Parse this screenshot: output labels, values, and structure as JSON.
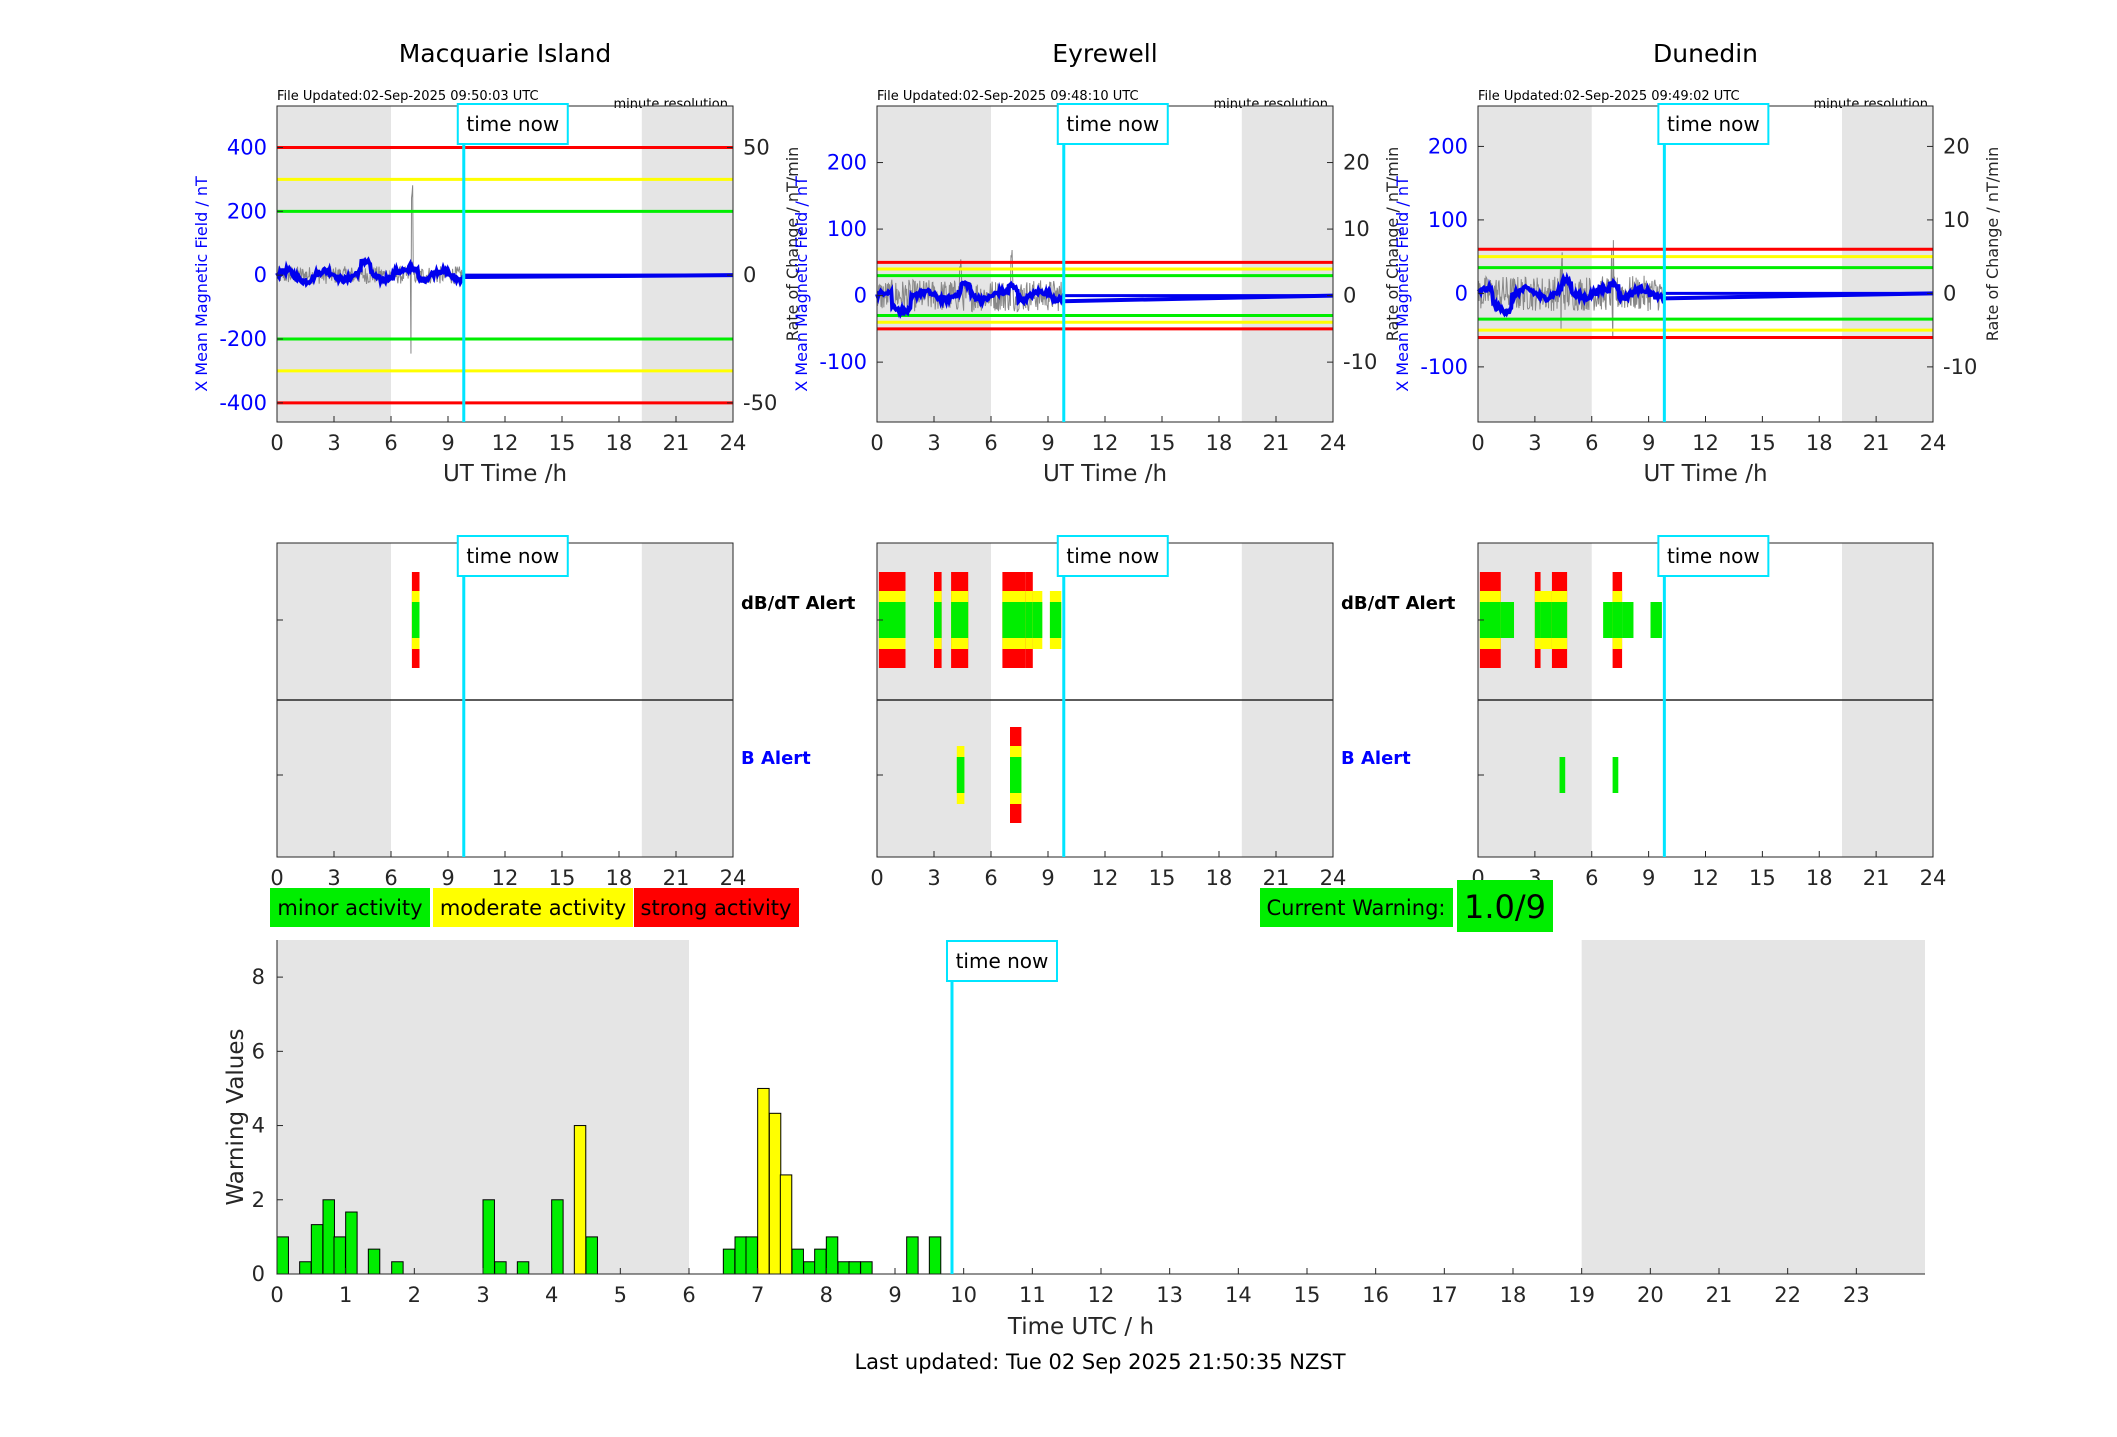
{
  "footer": "Last updated: Tue 02 Sep 2025 21:50:35 NZST",
  "time_now_label": "time now",
  "legend": {
    "minor": "minor activity",
    "moderate": "moderate activity",
    "strong": "strong activity",
    "colors": {
      "minor": "#00ee00",
      "moderate": "#ffff00",
      "strong": "#ff0000",
      "now": "#00e5ff",
      "trace": "#0000ee"
    }
  },
  "current_warning": {
    "label": "Current Warning:",
    "value": "1.0/9"
  },
  "stations": [
    {
      "name": "Macquarie Island",
      "file_updated": "File Updated:02-Sep-2025 09:50:03 UTC",
      "resolution": "minute resolution",
      "y_label": "X Mean Magnetic Field / nT",
      "y2_label": "Rate of Change / nT/min",
      "y_ticks": [
        -400,
        -200,
        0,
        200,
        400
      ],
      "y2_ticks": [
        -50,
        0,
        50
      ],
      "y_range": [
        -460,
        530
      ],
      "y2_range": [
        -57.5,
        66.25
      ],
      "thresholds": {
        "red": 400,
        "yellow": 300,
        "green": 200
      },
      "night_shading_hours": [
        [
          0,
          6
        ],
        [
          19.2,
          24
        ]
      ],
      "x_label": "UT Time /h",
      "x_ticks": [
        0,
        3,
        6,
        9,
        12,
        15,
        18,
        21,
        24
      ],
      "dbdt_alerts": [
        {
          "start": 7.1,
          "end": 7.5,
          "level": 3
        }
      ],
      "b_alerts": []
    },
    {
      "name": "Eyrewell",
      "file_updated": "File Updated:02-Sep-2025 09:48:10 UTC",
      "resolution": "minute resolution",
      "y_label": "X Mean Magnetic Field / nT",
      "y2_label": "Rate of Change / nT/min",
      "y_ticks": [
        -100,
        0,
        100,
        200
      ],
      "y2_ticks": [
        -10,
        0,
        10,
        20
      ],
      "y_range": [
        -190,
        285
      ],
      "y2_range": [
        -19,
        28.5
      ],
      "thresholds": {
        "red": 50,
        "yellow": 40,
        "green": 30
      },
      "night_shading_hours": [
        [
          0,
          6
        ],
        [
          19.2,
          24
        ]
      ],
      "x_label": "UT Time /h",
      "x_ticks": [
        0,
        3,
        6,
        9,
        12,
        15,
        18,
        21,
        24
      ],
      "dbdt_alerts": [
        {
          "start": 0.1,
          "end": 1.5,
          "level": 3
        },
        {
          "start": 3.0,
          "end": 3.4,
          "level": 3
        },
        {
          "start": 3.9,
          "end": 4.8,
          "level": 3
        },
        {
          "start": 6.6,
          "end": 7.8,
          "level": 3
        },
        {
          "start": 7.8,
          "end": 8.2,
          "level": 3
        },
        {
          "start": 8.2,
          "end": 8.7,
          "level": 2
        },
        {
          "start": 9.1,
          "end": 9.7,
          "level": 2
        }
      ],
      "b_alerts": [
        {
          "start": 4.2,
          "end": 4.6,
          "level": 2
        },
        {
          "start": 7.0,
          "end": 7.6,
          "level": 3
        }
      ]
    },
    {
      "name": "Dunedin",
      "file_updated": "File Updated:02-Sep-2025 09:49:02 UTC",
      "resolution": "minute resolution",
      "y_label": "X Mean Magnetic Field / nT",
      "y2_label": "Rate of Change / nT/min",
      "y_ticks": [
        -100,
        0,
        100,
        200
      ],
      "y2_ticks": [
        -10,
        0,
        10,
        20
      ],
      "y_range": [
        -175,
        255
      ],
      "y2_range": [
        -17.5,
        25.5
      ],
      "thresholds": {
        "red": 60,
        "yellow": 50,
        "green": 35
      },
      "night_shading_hours": [
        [
          0,
          6
        ],
        [
          19.2,
          24
        ]
      ],
      "x_label": "UT Time /h",
      "x_ticks": [
        0,
        3,
        6,
        9,
        12,
        15,
        18,
        21,
        24
      ],
      "dbdt_alerts": [
        {
          "start": 0.1,
          "end": 1.2,
          "level": 3
        },
        {
          "start": 1.2,
          "end": 1.9,
          "level": 1
        },
        {
          "start": 3.0,
          "end": 3.3,
          "level": 3
        },
        {
          "start": 3.3,
          "end": 3.9,
          "level": 2
        },
        {
          "start": 3.9,
          "end": 4.7,
          "level": 3
        },
        {
          "start": 6.6,
          "end": 7.1,
          "level": 1
        },
        {
          "start": 7.1,
          "end": 7.6,
          "level": 3
        },
        {
          "start": 7.6,
          "end": 8.2,
          "level": 1
        },
        {
          "start": 9.1,
          "end": 9.7,
          "level": 1
        }
      ],
      "b_alerts": [
        {
          "start": 4.3,
          "end": 4.6,
          "level": 1
        },
        {
          "start": 7.1,
          "end": 7.4,
          "level": 1
        }
      ]
    }
  ],
  "dbdt_alert_label": "dB/dT Alert",
  "b_alert_label": "B Alert",
  "alert_x_ticks": [
    0,
    3,
    6,
    9,
    12,
    15,
    18,
    21,
    24
  ],
  "time_now_hour": 9.83,
  "chart_data": {
    "type": "bar",
    "xlabel": "Time UTC / h",
    "ylabel": "Warning Values",
    "xlim": [
      0,
      24
    ],
    "ylim": [
      0,
      9
    ],
    "y_ticks": [
      0,
      2,
      4,
      6,
      8
    ],
    "x_ticks": [
      0,
      1,
      2,
      3,
      4,
      5,
      6,
      7,
      8,
      9,
      10,
      11,
      12,
      13,
      14,
      15,
      16,
      17,
      18,
      19,
      20,
      21,
      22,
      23
    ],
    "night_shading_hours": [
      [
        0,
        6
      ],
      [
        19,
        24
      ]
    ],
    "bins": [
      {
        "x": 0.0,
        "value": 1.0,
        "level": "minor"
      },
      {
        "x": 0.33,
        "value": 0.33,
        "level": "minor"
      },
      {
        "x": 0.5,
        "value": 1.33,
        "level": "minor"
      },
      {
        "x": 0.67,
        "value": 2.0,
        "level": "minor"
      },
      {
        "x": 0.83,
        "value": 1.0,
        "level": "minor"
      },
      {
        "x": 1.0,
        "value": 1.67,
        "level": "minor"
      },
      {
        "x": 1.33,
        "value": 0.67,
        "level": "minor"
      },
      {
        "x": 1.67,
        "value": 0.33,
        "level": "minor"
      },
      {
        "x": 3.0,
        "value": 2.0,
        "level": "minor"
      },
      {
        "x": 3.17,
        "value": 0.33,
        "level": "minor"
      },
      {
        "x": 3.5,
        "value": 0.33,
        "level": "minor"
      },
      {
        "x": 4.0,
        "value": 2.0,
        "level": "minor"
      },
      {
        "x": 4.33,
        "value": 4.0,
        "level": "moderate"
      },
      {
        "x": 4.5,
        "value": 1.0,
        "level": "minor"
      },
      {
        "x": 6.5,
        "value": 0.67,
        "level": "minor"
      },
      {
        "x": 6.67,
        "value": 1.0,
        "level": "minor"
      },
      {
        "x": 6.83,
        "value": 1.0,
        "level": "minor"
      },
      {
        "x": 7.0,
        "value": 5.0,
        "level": "moderate"
      },
      {
        "x": 7.17,
        "value": 4.33,
        "level": "moderate"
      },
      {
        "x": 7.33,
        "value": 2.67,
        "level": "moderate"
      },
      {
        "x": 7.5,
        "value": 0.67,
        "level": "minor"
      },
      {
        "x": 7.67,
        "value": 0.33,
        "level": "minor"
      },
      {
        "x": 7.83,
        "value": 0.67,
        "level": "minor"
      },
      {
        "x": 8.0,
        "value": 1.0,
        "level": "minor"
      },
      {
        "x": 8.17,
        "value": 0.33,
        "level": "minor"
      },
      {
        "x": 8.33,
        "value": 0.33,
        "level": "minor"
      },
      {
        "x": 8.5,
        "value": 0.33,
        "level": "minor"
      },
      {
        "x": 9.17,
        "value": 1.0,
        "level": "minor"
      },
      {
        "x": 9.5,
        "value": 1.0,
        "level": "minor"
      }
    ],
    "bin_width_hours": 0.1667,
    "time_now_hour": 9.83
  }
}
